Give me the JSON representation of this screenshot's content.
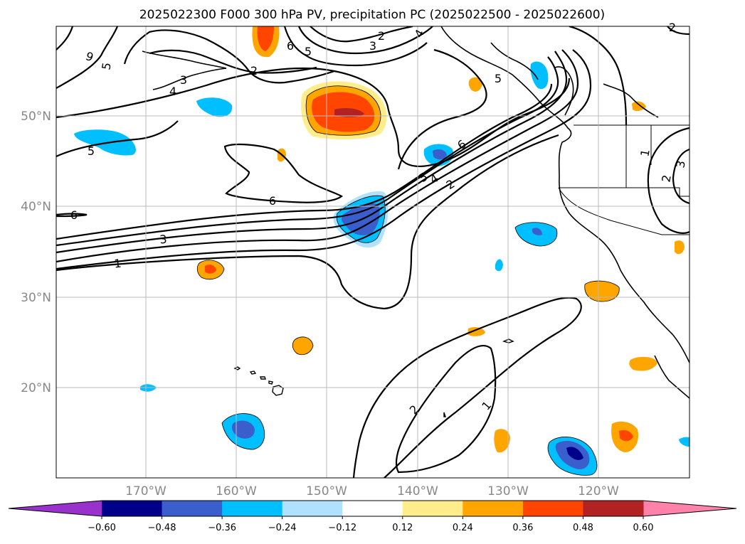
{
  "title": "2025022300 F000 300 hPa PV, precipitation PC (2025022500 - 2025022600)",
  "lat_labels": [
    "50°N",
    "40°N",
    "30°N",
    "20°N"
  ],
  "lon_labels": [
    "170°W",
    "160°W",
    "150°W",
    "140°W",
    "130°W",
    "120°W"
  ],
  "colorbar": {
    "tick_labels": [
      "−0.60",
      "−0.48",
      "−0.36",
      "−0.24",
      "−0.12",
      "0.12",
      "0.24",
      "0.36",
      "0.48",
      "0.60"
    ],
    "colors": [
      "#9932cc",
      "#00008b",
      "#3a5fcd",
      "#00bfff",
      "#b0e2ff",
      "#ffffff",
      "#ffec8b",
      "#ffa500",
      "#ff4500",
      "#b22222",
      "#ff82ab"
    ]
  },
  "contour_labels": [
    "1",
    "2",
    "3",
    "4",
    "5",
    "6",
    "6",
    "6",
    "5",
    "5",
    "4",
    "3",
    "2",
    "1",
    "2",
    "1",
    "2",
    "3",
    "5",
    "6",
    "2",
    "3",
    "4",
    "2",
    "5",
    "6"
  ]
}
